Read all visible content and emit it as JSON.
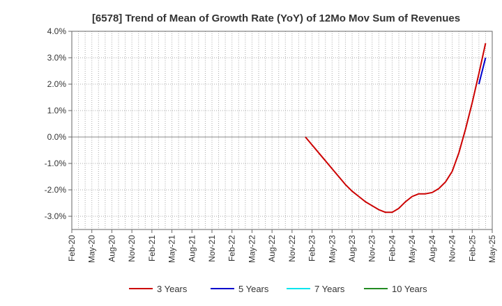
{
  "chart_data": {
    "type": "line",
    "title": "[6578]  Trend of Mean of Growth Rate (YoY) of 12Mo Mov Sum of Revenues",
    "xlabel": "",
    "ylabel": "",
    "x_ticks": [
      "Feb-20",
      "May-20",
      "Aug-20",
      "Nov-20",
      "Feb-21",
      "May-21",
      "Aug-21",
      "Nov-21",
      "Feb-22",
      "May-22",
      "Aug-22",
      "Nov-22",
      "Feb-23",
      "May-23",
      "Aug-23",
      "Nov-23",
      "Feb-24",
      "May-24",
      "Aug-24",
      "Nov-24",
      "Feb-25",
      "May-25"
    ],
    "y_ticks": [
      4.0,
      3.0,
      2.0,
      1.0,
      0.0,
      -1.0,
      -2.0,
      -3.0
    ],
    "y_tick_labels": [
      "4.0%",
      "3.0%",
      "2.0%",
      "1.0%",
      "0.0%",
      "-1.0%",
      "-2.0%",
      "-3.0%"
    ],
    "ylim": [
      -3.5,
      4.0
    ],
    "grid": true,
    "legend_position": "bottom",
    "series": [
      {
        "name": "3 Years",
        "color": "#cc0000",
        "points": [
          [
            "Jan-23",
            0.0
          ],
          [
            "Feb-23",
            -0.3
          ],
          [
            "Mar-23",
            -0.6
          ],
          [
            "Apr-23",
            -0.9
          ],
          [
            "May-23",
            -1.2
          ],
          [
            "Jun-23",
            -1.5
          ],
          [
            "Jul-23",
            -1.8
          ],
          [
            "Aug-23",
            -2.05
          ],
          [
            "Sep-23",
            -2.25
          ],
          [
            "Oct-23",
            -2.45
          ],
          [
            "Nov-23",
            -2.6
          ],
          [
            "Dec-23",
            -2.75
          ],
          [
            "Jan-24",
            -2.85
          ],
          [
            "Feb-24",
            -2.85
          ],
          [
            "Mar-24",
            -2.7
          ],
          [
            "Apr-24",
            -2.45
          ],
          [
            "May-24",
            -2.25
          ],
          [
            "Jun-24",
            -2.15
          ],
          [
            "Jul-24",
            -2.15
          ],
          [
            "Aug-24",
            -2.1
          ],
          [
            "Sep-24",
            -1.95
          ],
          [
            "Oct-24",
            -1.7
          ],
          [
            "Nov-24",
            -1.3
          ],
          [
            "Dec-24",
            -0.6
          ],
          [
            "Jan-25",
            0.3
          ],
          [
            "Feb-25",
            1.3
          ],
          [
            "Mar-25",
            2.4
          ],
          [
            "Apr-25",
            3.55
          ]
        ]
      },
      {
        "name": "5 Years",
        "color": "#0000cc",
        "points": [
          [
            "Mar-25",
            2.0
          ],
          [
            "Apr-25",
            3.0
          ]
        ]
      },
      {
        "name": "7 Years",
        "color": "#00e5ee",
        "points": []
      },
      {
        "name": "10 Years",
        "color": "#228b22",
        "points": []
      }
    ]
  }
}
